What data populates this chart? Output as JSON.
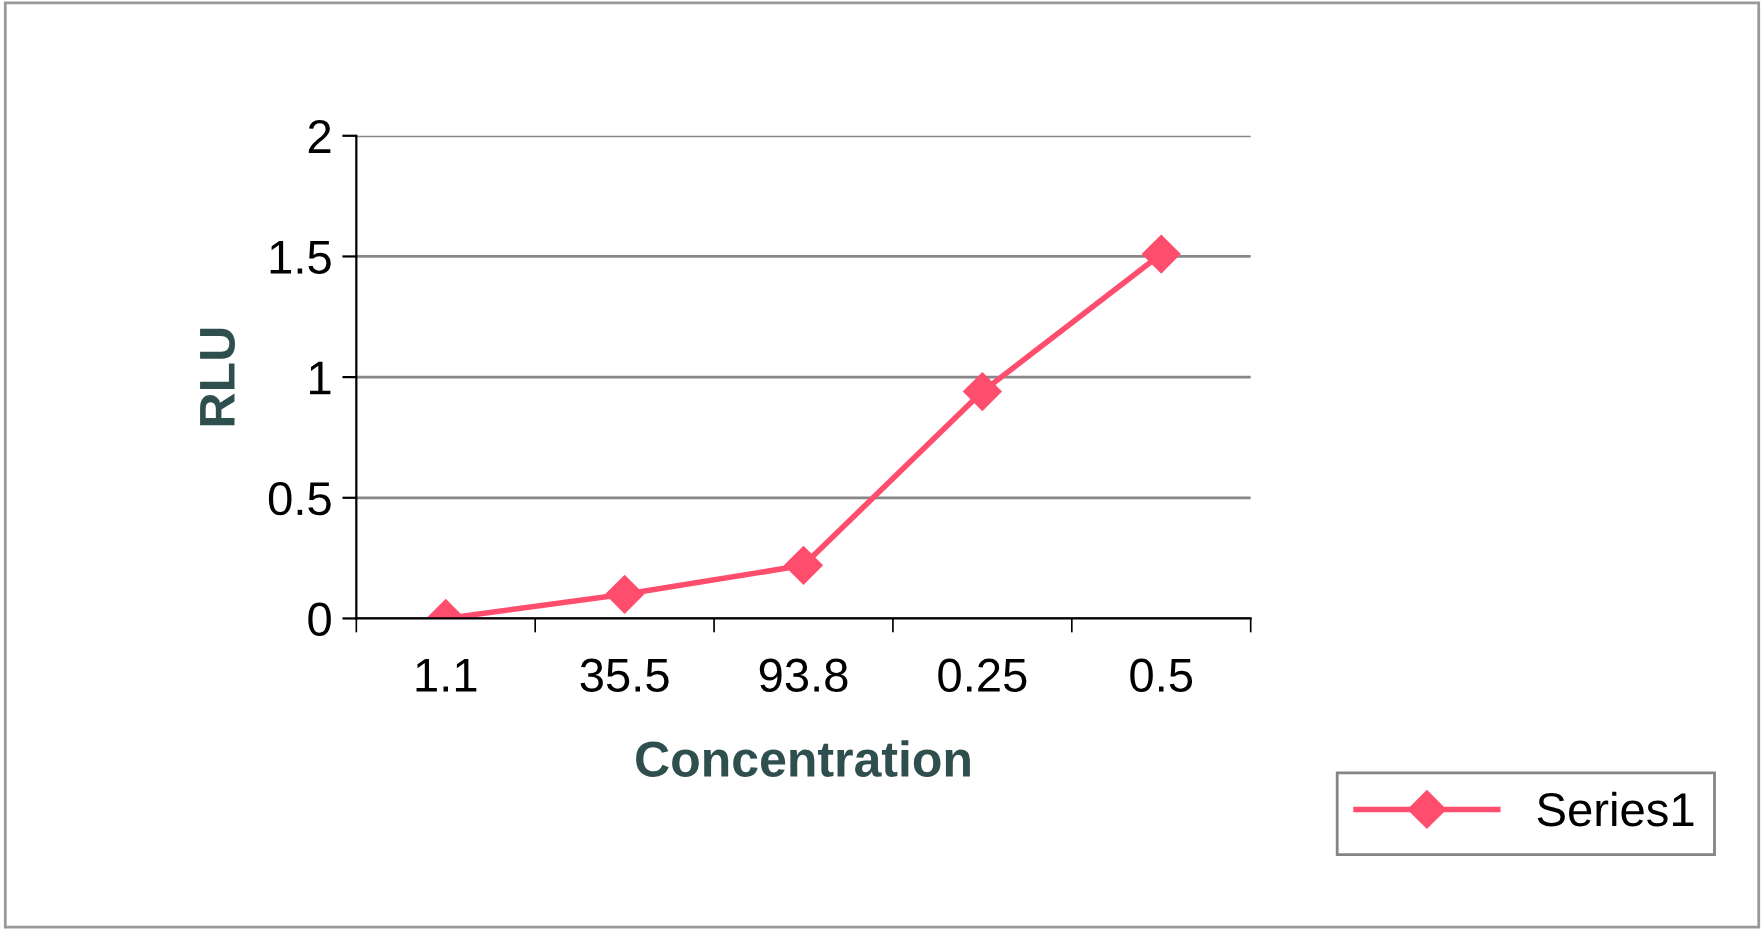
{
  "chart_data": {
    "type": "line",
    "xlabel": "Concentration",
    "ylabel": "RLU",
    "categories": [
      "1.1",
      "35.5",
      "93.8",
      "0.25",
      "0.5"
    ],
    "series": [
      {
        "name": "Series1",
        "color": "#ff4d6d",
        "values": [
          0,
          0.1,
          0.22,
          0.94,
          1.51
        ]
      }
    ],
    "ylim": [
      0,
      2
    ],
    "yticks": [
      0,
      0.5,
      1,
      1.5,
      2
    ],
    "grid": "y",
    "legend": "bottom right",
    "marker": "diamond",
    "line_style": "solid"
  }
}
